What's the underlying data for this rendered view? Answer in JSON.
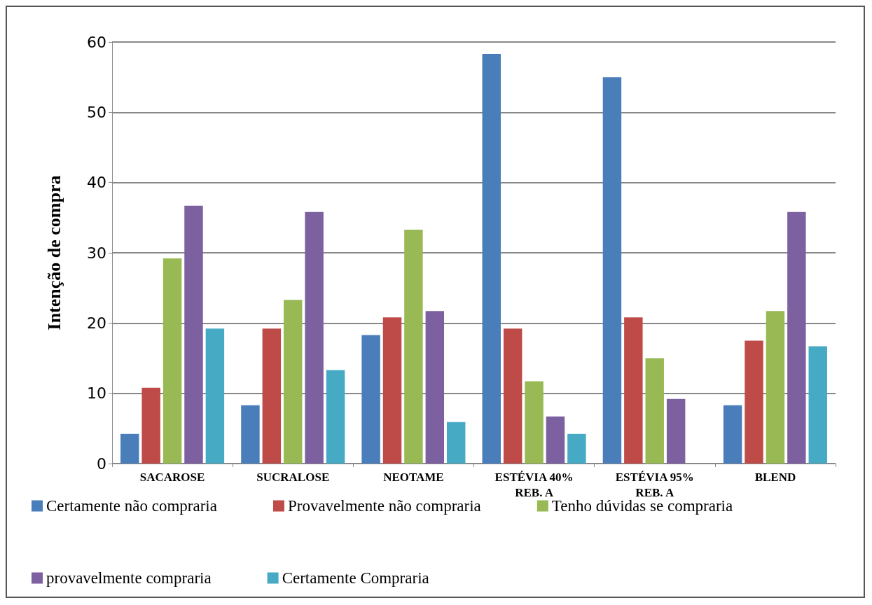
{
  "chart_data": {
    "type": "bar",
    "ylabel": "Intenção de compra",
    "categories": [
      "SACAROSE",
      "SUCRALOSE",
      "NEOTAME",
      "ESTÉVIA 40%\nREB. A",
      "ESTÉVIA 95%\nREB. A",
      "BLEND"
    ],
    "series": [
      {
        "name": "Certamente não compraria",
        "color": "#4a7ebb",
        "values": [
          4.2,
          8.3,
          18.3,
          58.3,
          55,
          8.3
        ]
      },
      {
        "name": "Provavelmente não compraria",
        "color": "#be4b48",
        "values": [
          10.8,
          19.2,
          20.8,
          19.2,
          20.8,
          17.5
        ]
      },
      {
        "name": "Tenho dúvidas se compraria",
        "color": "#98b954",
        "values": [
          29.2,
          23.3,
          33.3,
          11.7,
          15,
          21.7
        ]
      },
      {
        "name": "provavelmente compraria",
        "color": "#7d60a0",
        "values": [
          36.7,
          35.8,
          21.7,
          6.7,
          9.2,
          35.8
        ]
      },
      {
        "name": "Certamente Compraria",
        "color": "#46aac5",
        "values": [
          19.2,
          13.3,
          5.9,
          4.2,
          0,
          16.7
        ]
      }
    ],
    "ylim": [
      0,
      60
    ],
    "yticks": [
      0,
      10,
      20,
      30,
      40,
      50,
      60
    ],
    "grid": "y",
    "legend": "bottom"
  }
}
